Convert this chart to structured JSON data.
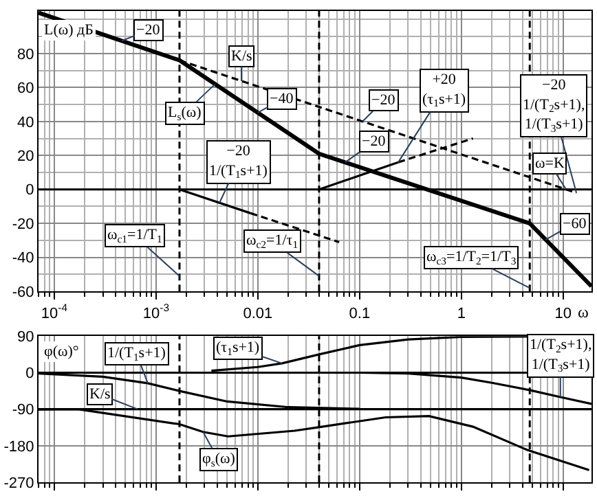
{
  "chart_data": [
    {
      "type": "line",
      "ylabel": "L(ω) дБ",
      "xlabel": "ω",
      "log": "x",
      "grid": true,
      "xlim": [
        7e-05,
        19
      ],
      "xticks": [
        {
          "value": 0.0001,
          "label": "10$^{-4}$"
        },
        {
          "value": 0.001,
          "label": "10$^{-3}$"
        },
        0.01,
        0.1,
        1,
        10
      ],
      "ylim": [
        -60,
        105
      ],
      "yticks": [
        -60,
        -40,
        -20,
        0,
        20,
        40,
        60,
        80
      ],
      "series": [
        {
          "color": "#000000",
          "line_style": "solid",
          "x": [
            7e-05,
            0.0017,
            0.04,
            4.7,
            19
          ],
          "values": [
            104,
            76,
            21,
            -20,
            -57
          ]
        },
        {
          "color": "#000000",
          "line_style": "dashed",
          "x": [
            0.0017,
            13.5
          ],
          "values": [
            76,
            -2
          ]
        },
        {
          "color": "#000000",
          "line_style": "solid",
          "x": [
            0.0017,
            0.0085
          ],
          "values": [
            0,
            -14
          ]
        },
        {
          "color": "#000000",
          "line_style": "dashed",
          "x": [
            0.0085,
            0.063
          ],
          "values": [
            -14,
            -31
          ]
        },
        {
          "color": "#000000",
          "line_style": "solid",
          "x": [
            0.04,
            0.24
          ],
          "values": [
            0,
            16
          ]
        },
        {
          "color": "#000000",
          "line_style": "dashed",
          "x": [
            0.24,
            1.3
          ],
          "values": [
            16,
            30
          ]
        }
      ],
      "ref_lines": [
        {
          "axis": "y",
          "value": 0,
          "line_style": "solid",
          "color": "#000000"
        },
        {
          "axis": "x",
          "value": 0.0017,
          "line_style": "dashed",
          "color": "#000000"
        },
        {
          "axis": "x",
          "value": 0.04,
          "line_style": "dashed",
          "color": "#000000"
        },
        {
          "axis": "x",
          "value": 4.7,
          "line_style": "dashed",
          "color": "#000000"
        }
      ],
      "annotations": [
        {
          "text": "−20",
          "x": 0.00046,
          "y": 87.4
        },
        {
          "text": "K/s",
          "x": 0.0069,
          "y": 63.8
        },
        {
          "text": "L$_{s}$(ω)",
          "x": 0.0038,
          "y": 62
        },
        {
          "text": "−40",
          "x": 0.01,
          "y": 45.2
        },
        {
          "text": "−20\n1/(T$_{1}$s+1)",
          "x": 0.0042,
          "y": -7.9
        },
        {
          "text": "−20",
          "x": 0.072,
          "y": 15.9
        },
        {
          "text": "−20",
          "x": 0.107,
          "y": 40
        },
        {
          "text": "+20\n(τ$_{1}$s+1)",
          "x": 0.24,
          "y": 16
        },
        {
          "text": "−20\n1/(T$_{2}$s+1),\n1/(T$_{3}$s+1)",
          "x": 13.5,
          "y": -2
        },
        {
          "text": "ω=K",
          "x": 10.7,
          "y": 0
        },
        {
          "text": "−60",
          "x": 6.7,
          "y": -29.7
        },
        {
          "text": "ω$_{c1}$=1/T$_{1}$",
          "x": 0.0017,
          "y": -51
        },
        {
          "text": "ω$_{c2}$=1/τ$_{1}$",
          "x": 0.04,
          "y": -51
        },
        {
          "text": "ω$_{c3}$=1/T$_{2}$=1/T$_{3}$",
          "x": 4.7,
          "y": -58
        }
      ]
    },
    {
      "type": "line",
      "ylabel": "φ(ω)°",
      "log": "x",
      "grid": true,
      "tick_labels": "y",
      "xlim": [
        7e-05,
        19
      ],
      "xticks": [
        0.0001,
        0.001,
        0.01,
        0.1,
        1,
        10
      ],
      "ylim": [
        -270,
        90
      ],
      "yticks": [
        -270,
        -180,
        -90,
        0,
        90
      ],
      "series": [
        {
          "color": "#000000",
          "line_style": "solid",
          "x": [
            7e-05,
            0.00017,
            0.0017,
            0.0029,
            0.0051,
            0.023,
            0.043,
            0.18,
            0.48,
            1.3,
            4.4,
            18
          ],
          "values": [
            -91,
            -90,
            -127,
            -146,
            -157,
            -143,
            -133,
            -110,
            -107,
            -133,
            -190,
            -240
          ]
        },
        {
          "color": "#000000",
          "line_style": "solid",
          "x": [
            7e-05,
            19
          ],
          "values": [
            -90,
            -90
          ]
        },
        {
          "color": "#000000",
          "line_style": "solid",
          "x": [
            7e-05,
            0.0003,
            0.00083,
            0.0017,
            0.005,
            0.02,
            0.1
          ],
          "values": [
            -2,
            -10,
            -26,
            -45,
            -71,
            -85,
            -89
          ]
        },
        {
          "color": "#000000",
          "line_style": "solid",
          "x": [
            0.0035,
            0.01,
            0.0173,
            0.04,
            0.1,
            0.3,
            1,
            19
          ],
          "values": [
            5,
            14,
            23,
            45,
            68,
            82,
            88,
            90
          ]
        },
        {
          "color": "#000000",
          "line_style": "solid",
          "x": [
            0.1,
            0.3,
            1,
            2,
            4.7,
            9.4,
            19
          ],
          "values": [
            0,
            -2,
            -12,
            -25,
            -43,
            -60,
            -77
          ]
        }
      ],
      "ref_lines": [
        {
          "axis": "y",
          "value": 0,
          "line_style": "solid",
          "color": "#000000"
        },
        {
          "axis": "x",
          "value": 0.0017,
          "line_style": "dashed",
          "color": "#000000"
        },
        {
          "axis": "x",
          "value": 0.04,
          "line_style": "dashed",
          "color": "#000000"
        },
        {
          "axis": "x",
          "value": 4.7,
          "line_style": "dashed",
          "color": "#000000"
        }
      ],
      "annotations": [
        {
          "text": "1/(T$_{1}$s+1)",
          "x": 0.00083,
          "y": -26
        },
        {
          "text": "K/s",
          "x": 0.00066,
          "y": -90
        },
        {
          "text": "(τ$_{1}$s+1)",
          "x": 0.0173,
          "y": 23
        },
        {
          "text": "φ$_{s}$(ω)",
          "x": 0.0029,
          "y": -146
        },
        {
          "text": "1/(T$_{2}$s+1),\n1/(T$_{3}$s+1)",
          "x": 9.4,
          "y": -60
        }
      ]
    }
  ]
}
